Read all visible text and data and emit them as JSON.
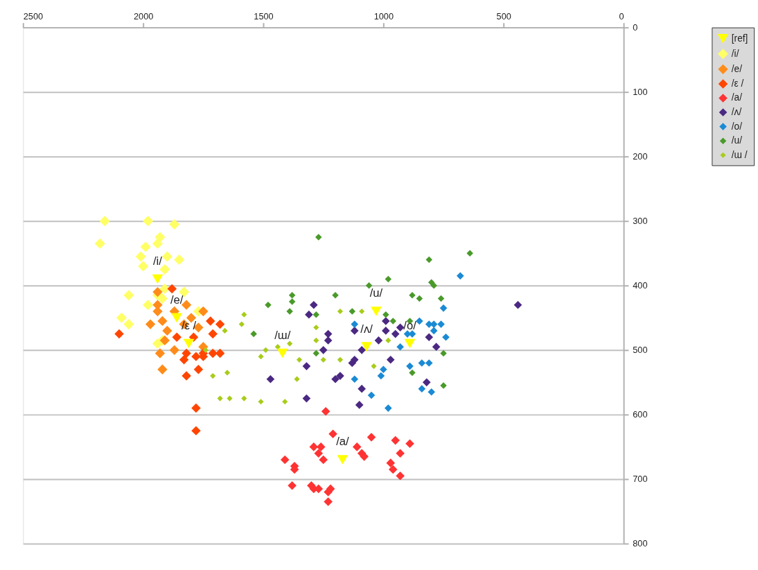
{
  "chart_data": {
    "type": "scatter",
    "xlim": [
      2500,
      0
    ],
    "xticks": [
      2500,
      2000,
      1500,
      1000,
      500,
      0
    ],
    "ylim": [
      800,
      0
    ],
    "yticks": [
      0,
      100,
      200,
      300,
      400,
      500,
      600,
      700,
      800
    ],
    "grid": "y",
    "legend": "right",
    "series": [
      {
        "name": "[ref]",
        "color": "#ffff00",
        "marker": "triangle",
        "x": [
          1940,
          1860,
          1810,
          1170,
          1070,
          890,
          1030,
          1420
        ],
        "values": [
          390,
          450,
          490,
          670,
          495,
          490,
          440,
          505
        ]
      },
      {
        "name": "/i/",
        "color": "#ffff66",
        "marker": "diamond",
        "x": [
          2160,
          1980,
          1870,
          2180,
          1930,
          1940,
          1990,
          2010,
          1900,
          1850,
          2000,
          1910,
          2060,
          1910,
          1940,
          1830,
          1920,
          1980,
          1770,
          2090,
          2060,
          1940,
          1920
        ],
        "values": [
          300,
          300,
          305,
          335,
          325,
          335,
          340,
          355,
          355,
          360,
          370,
          375,
          415,
          405,
          415,
          410,
          420,
          430,
          440,
          450,
          460,
          490,
          485
        ]
      },
      {
        "name": "/e/",
        "color": "#ff8c1a",
        "marker": "diamond",
        "x": [
          1940,
          1940,
          1920,
          1970,
          1900,
          1870,
          1820,
          1800,
          1830,
          1770,
          1750,
          1910,
          1870,
          1930,
          1750,
          1920,
          1940
        ],
        "values": [
          430,
          440,
          455,
          460,
          470,
          440,
          430,
          450,
          460,
          465,
          440,
          485,
          500,
          505,
          495,
          530,
          410
        ]
      },
      {
        "name": "/ε  /",
        "color": "#ff4500",
        "marker": "diamond",
        "x": [
          1880,
          2100,
          1720,
          1680,
          1710,
          1860,
          1790,
          1820,
          1830,
          1780,
          1750,
          1710,
          1680,
          1770,
          1820,
          1780,
          1780,
          1750
        ],
        "values": [
          405,
          475,
          455,
          460,
          475,
          480,
          480,
          505,
          515,
          510,
          510,
          505,
          505,
          530,
          540,
          590,
          625,
          505
        ]
      },
      {
        "name": "/a/",
        "color": "#ff3333",
        "marker": "diamond",
        "x": [
          1240,
          1210,
          1290,
          1260,
          1270,
          1250,
          1410,
          1370,
          1370,
          1380,
          1300,
          1290,
          1270,
          1230,
          1220,
          1230,
          1110,
          1090,
          1080,
          1050,
          950,
          890,
          930,
          970,
          960,
          930
        ],
        "values": [
          595,
          630,
          650,
          650,
          660,
          670,
          670,
          680,
          685,
          710,
          710,
          715,
          715,
          720,
          715,
          735,
          650,
          660,
          665,
          635,
          640,
          645,
          660,
          675,
          685,
          695
        ]
      },
      {
        "name": "/ʌ/",
        "color": "#4b2882",
        "marker": "diamond",
        "x": [
          1290,
          1310,
          1230,
          1230,
          1250,
          1320,
          1470,
          1320,
          1200,
          1180,
          1130,
          1120,
          1090,
          1120,
          1020,
          1090,
          1100,
          990,
          990,
          950,
          930,
          970,
          810,
          780,
          820,
          440
        ],
        "values": [
          430,
          445,
          475,
          485,
          500,
          525,
          545,
          575,
          545,
          540,
          520,
          515,
          500,
          470,
          485,
          560,
          585,
          455,
          470,
          475,
          465,
          515,
          480,
          495,
          550,
          430
        ]
      },
      {
        "name": "/o/",
        "color": "#1a8ad4",
        "marker": "diamond",
        "x": [
          680,
          750,
          760,
          790,
          810,
          790,
          740,
          850,
          880,
          900,
          930,
          1000,
          1010,
          1120,
          1050,
          980,
          890,
          840,
          810,
          840,
          800,
          1120
        ],
        "values": [
          385,
          435,
          460,
          460,
          460,
          470,
          480,
          455,
          475,
          475,
          495,
          530,
          540,
          545,
          570,
          590,
          525,
          520,
          520,
          560,
          565,
          460
        ]
      },
      {
        "name": "/u/",
        "color": "#4a9a2a",
        "marker": "diamond",
        "x": [
          1270,
          1380,
          1380,
          1480,
          1390,
          1280,
          1200,
          1540,
          1280,
          1130,
          1060,
          980,
          810,
          640,
          800,
          790,
          880,
          850,
          760,
          990,
          960,
          890,
          750,
          880,
          750
        ],
        "values": [
          325,
          415,
          425,
          430,
          440,
          445,
          415,
          475,
          505,
          440,
          400,
          390,
          360,
          350,
          395,
          400,
          415,
          420,
          420,
          445,
          455,
          455,
          505,
          535,
          555
        ]
      },
      {
        "name": "/ɯ /",
        "color": "#a8cc1a",
        "marker": "diamond",
        "x": [
          1580,
          1590,
          1490,
          1510,
          1390,
          1440,
          1350,
          1280,
          1280,
          1250,
          1180,
          1180,
          1090,
          1360,
          1580,
          1510,
          1410,
          1040,
          1660,
          1710,
          1650,
          1680,
          1640,
          1740,
          980
        ],
        "values": [
          445,
          460,
          500,
          510,
          490,
          495,
          515,
          465,
          485,
          515,
          515,
          440,
          440,
          545,
          575,
          580,
          580,
          525,
          470,
          540,
          535,
          575,
          575,
          500,
          485
        ]
      }
    ],
    "annotations": [
      {
        "text": "/i/",
        "x": 1940,
        "y": 390
      },
      {
        "text": "/e/",
        "x": 1860,
        "y": 450
      },
      {
        "text": "/ε /",
        "x": 1810,
        "y": 490
      },
      {
        "text": "/a/",
        "x": 1170,
        "y": 670
      },
      {
        "text": "/ʌ/",
        "x": 1070,
        "y": 495
      },
      {
        "text": "/o/",
        "x": 890,
        "y": 490
      },
      {
        "text": "/u/",
        "x": 1030,
        "y": 440
      },
      {
        "text": "/ɯ/",
        "x": 1420,
        "y": 505
      }
    ]
  }
}
